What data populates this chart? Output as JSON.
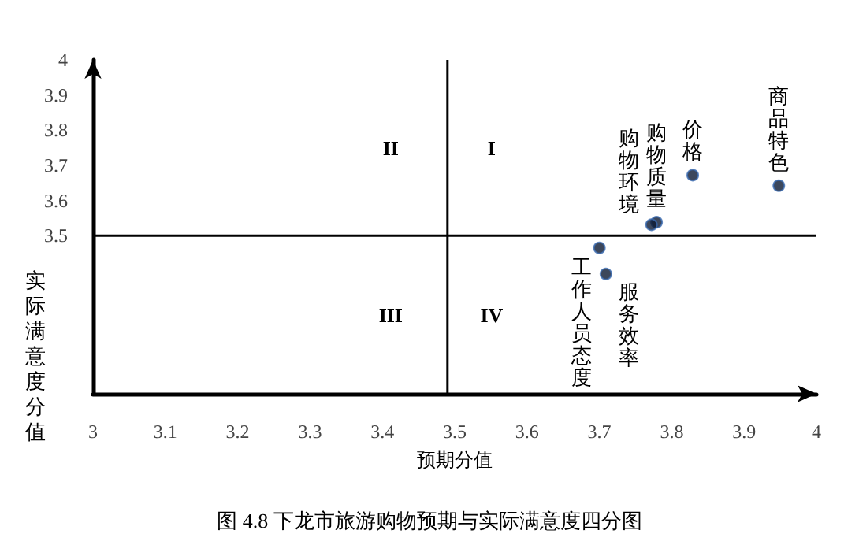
{
  "chart_data": {
    "type": "scatter",
    "title": "图 4.8 下龙市旅游购物预期与实际满意度四分图",
    "xlabel": "预期分值",
    "ylabel": "实际满意度分值",
    "x": [
      3.948,
      3.829,
      3.779,
      3.772,
      3.7,
      3.709
    ],
    "values": [
      3.642,
      3.672,
      3.538,
      3.531,
      3.465,
      3.391
    ],
    "color": "#0d1a33",
    "marker": "circle",
    "xlim": [
      3,
      4
    ],
    "xticks": [
      3,
      3.1,
      3.2,
      3.3,
      3.4,
      3.5,
      3.6,
      3.7,
      3.8,
      3.9,
      4
    ],
    "ylim": [
      3.05,
      4
    ],
    "yticks": [
      3.5,
      3.6,
      3.7,
      3.8,
      3.9,
      4
    ],
    "grid": false,
    "ref_lines": [
      {
        "axis": "x",
        "value": 3.49,
        "color": "#000000"
      },
      {
        "axis": "y",
        "value": 3.5,
        "color": "#000000"
      }
    ],
    "annotations": [
      {
        "text": "商品特色",
        "x": 3.948,
        "y": 3.642
      },
      {
        "text": "价格",
        "x": 3.829,
        "y": 3.672
      },
      {
        "text": "购物质量",
        "x": 3.779,
        "y": 3.538
      },
      {
        "text": "购物环境",
        "x": 3.772,
        "y": 3.531
      },
      {
        "text": "工作人员态度",
        "x": 3.7,
        "y": 3.465
      },
      {
        "text": "服务效率",
        "x": 3.709,
        "y": 3.391
      },
      "II",
      "I",
      "III",
      "IV"
    ]
  }
}
